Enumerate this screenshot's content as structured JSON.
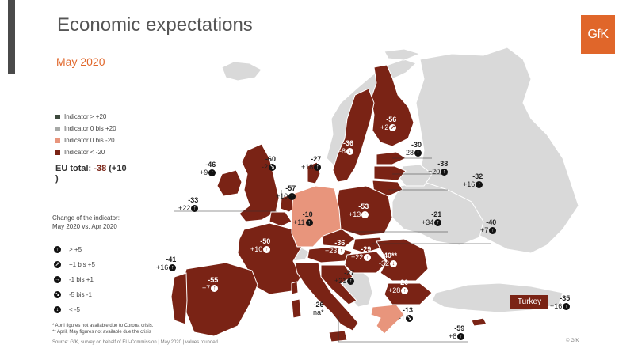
{
  "header": {
    "title": "Economic expectations",
    "subtitle": "May 2020",
    "logo_text": "GfK"
  },
  "colors": {
    "brand": "#e0662a",
    "indicator_gt_20": "#3d4a3d",
    "indicator_0_20": "#a7a9a7",
    "indicator_0_m20": "#e8957c",
    "indicator_lt_m20": "#7a2315",
    "non_eu": "#d9d9d9"
  },
  "legend": {
    "items": [
      {
        "label": "Indicator > +20",
        "color": "#3d4a3d"
      },
      {
        "label": "Indicator 0 bis +20",
        "color": "#a7a9a7"
      },
      {
        "label": "Indicator 0 bis -20",
        "color": "#e8957c"
      },
      {
        "label": "Indicator < -20",
        "color": "#7a2315"
      }
    ]
  },
  "eu_total": {
    "label": "EU total:",
    "value": "-38",
    "change": "(+10",
    "close": ")"
  },
  "change_legend": {
    "title_line1": "Change of the indicator:",
    "title_line2": "May 2020 vs. Apr 2020",
    "items": [
      {
        "icon": "arrow-up-icon",
        "label": "> +5"
      },
      {
        "icon": "arrow-up-right-icon",
        "label": "+1 bis +5"
      },
      {
        "icon": "arrow-right-icon",
        "label": "-1 bis +1"
      },
      {
        "icon": "arrow-down-right-icon",
        "label": "-5 bis -1"
      },
      {
        "icon": "arrow-down-icon",
        "label": "< -5"
      }
    ]
  },
  "notes": {
    "note1": "* April figures not available due to Corona crisis.",
    "note2": "** April, May figures not available due the crisis",
    "source": "Source: GfK, survey on behalf of EU-Commission | May 2020 | values rounded",
    "copyright": "© GfK"
  },
  "countries": {
    "ireland": {
      "value": "-46",
      "change": "+9"
    },
    "uk": {
      "value": "-60",
      "change": "-2"
    },
    "denmark": {
      "value": "-27",
      "change": "+18"
    },
    "sweden": {
      "value": "-36",
      "change": "-8"
    },
    "finland": {
      "value": "-56",
      "change": "+2"
    },
    "estonia": {
      "value": "-30",
      "change": "28"
    },
    "latvia": {
      "value": "-38",
      "change": "+20"
    },
    "lithuania": {
      "value": "-32",
      "change": "+16"
    },
    "netherlands": {
      "value": "-57",
      "change": "+10"
    },
    "belgium": {
      "value": "-33",
      "change": "+22"
    },
    "germany": {
      "value": "-10",
      "change": "+11"
    },
    "poland": {
      "value": "-53",
      "change": "+13"
    },
    "czechia": {
      "value": "-21",
      "change": "+34"
    },
    "slovakia": {
      "value": "-40",
      "change": "+7"
    },
    "france": {
      "value": "-50",
      "change": "+10"
    },
    "austria": {
      "value": "-36",
      "change": "+23"
    },
    "hungary": {
      "value": "-29",
      "change": "+22"
    },
    "romania": {
      "value": "-40**",
      "change": "-32"
    },
    "spain": {
      "value": "-41",
      "change": "+16"
    },
    "portugal": {
      "value": "-55",
      "change": "+7"
    },
    "croatia": {
      "value": "-27",
      "change": "+21"
    },
    "bulgaria": {
      "value": "-20",
      "change": "+28"
    },
    "italy": {
      "value": "-26",
      "change": "na*"
    },
    "greece": {
      "value": "-13",
      "change": "-1"
    },
    "cyprus": {
      "value": "-59",
      "change": "+8"
    },
    "turkey": {
      "label": "Turkey",
      "value": "-35",
      "change": "+16"
    }
  }
}
